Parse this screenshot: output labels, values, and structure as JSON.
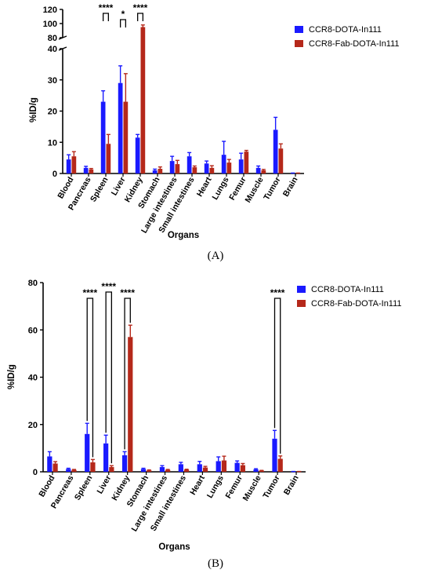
{
  "colors": {
    "series1": "#1a1aff",
    "series2": "#b5281a",
    "axis": "#000000"
  },
  "chart_data": [
    {
      "type": "bar",
      "panel_label": "(A)",
      "ylabel": "%ID/g",
      "xlabel": "Organs",
      "ylim": [
        0,
        40
      ],
      "ylim_upper": [
        80,
        120
      ],
      "yticks": [
        "0",
        "10",
        "20",
        "30",
        "40"
      ],
      "yticks_upper": [
        "80",
        "100",
        "120"
      ],
      "axis_break": true,
      "grid": false,
      "legend_position": "top-right",
      "categories": [
        "Blood",
        "Pancreas",
        "Spleen",
        "Liver",
        "Kidney",
        "Stomach",
        "Large intestines",
        "Small intestines",
        "Heart",
        "Lungs",
        "Femur",
        "Muscle",
        "Tumor",
        "Brain"
      ],
      "series": [
        {
          "name": "CCR8-DOTA-In111",
          "values": [
            4.5,
            1.8,
            23,
            29,
            11.5,
            1.0,
            4.0,
            5.5,
            3.2,
            6.0,
            4.5,
            1.8,
            14,
            0.1
          ],
          "errors": [
            1.5,
            0.5,
            3.5,
            5.5,
            1.0,
            0.4,
            1.5,
            1.2,
            0.8,
            4.3,
            2.0,
            0.6,
            4,
            0.05
          ]
        },
        {
          "name": "CCR8-Fab-DOTA-In111",
          "values": [
            5.5,
            1.3,
            9.5,
            23,
            95,
            1.5,
            3.0,
            2.0,
            1.8,
            3.5,
            7.0,
            1.0,
            8.0,
            0.1
          ],
          "errors": [
            1.5,
            0.3,
            3.0,
            9.0,
            3.0,
            0.6,
            1.2,
            0.4,
            0.7,
            1.0,
            0.4,
            0.3,
            1.5,
            0.05
          ]
        }
      ],
      "significance": [
        {
          "pair": [
            "Spleen",
            "Spleen"
          ],
          "label": "****"
        },
        {
          "pair": [
            "Liver",
            "Liver"
          ],
          "label": "*"
        },
        {
          "pair": [
            "Kidney",
            "Kidney"
          ],
          "label": "****"
        }
      ]
    },
    {
      "type": "bar",
      "panel_label": "(B)",
      "ylabel": "%ID/g",
      "xlabel": "Organs",
      "ylim": [
        0,
        80
      ],
      "yticks": [
        "0",
        "20",
        "40",
        "60",
        "80"
      ],
      "grid": false,
      "legend_position": "top-right",
      "categories": [
        "Blood",
        "Pancreas",
        "Spleen",
        "Liver",
        "Kidney",
        "Stomach",
        "Large intestines",
        "Small intestines",
        "Heart",
        "Lungs",
        "Femur",
        "Muscle",
        "Tumor",
        "Brain"
      ],
      "series": [
        {
          "name": "CCR8-DOTA-In111",
          "values": [
            6.5,
            1.2,
            16,
            12,
            7.0,
            1.2,
            2.0,
            3.2,
            3.2,
            4.5,
            3.8,
            1.0,
            14,
            0.1
          ],
          "errors": [
            2.0,
            0.3,
            4.5,
            3.5,
            1.5,
            0.3,
            0.6,
            0.8,
            1.2,
            1.8,
            0.8,
            0.3,
            3.5,
            0.05
          ]
        },
        {
          "name": "CCR8-Fab-DOTA-In111",
          "values": [
            3.5,
            0.8,
            4.0,
            2.0,
            57,
            0.6,
            0.8,
            0.9,
            1.8,
            4.8,
            2.8,
            0.5,
            5.5,
            0.1
          ],
          "errors": [
            0.8,
            0.2,
            1.2,
            0.6,
            5.0,
            0.2,
            0.2,
            0.2,
            0.5,
            1.8,
            0.7,
            0.1,
            1.2,
            0.05
          ]
        }
      ],
      "significance": [
        {
          "pair": [
            "Spleen",
            "Spleen"
          ],
          "label": "****"
        },
        {
          "pair": [
            "Liver",
            "Liver"
          ],
          "label": "****"
        },
        {
          "pair": [
            "Kidney",
            "Kidney"
          ],
          "label": "****"
        },
        {
          "pair": [
            "Tumor",
            "Tumor"
          ],
          "label": "****"
        }
      ]
    }
  ]
}
